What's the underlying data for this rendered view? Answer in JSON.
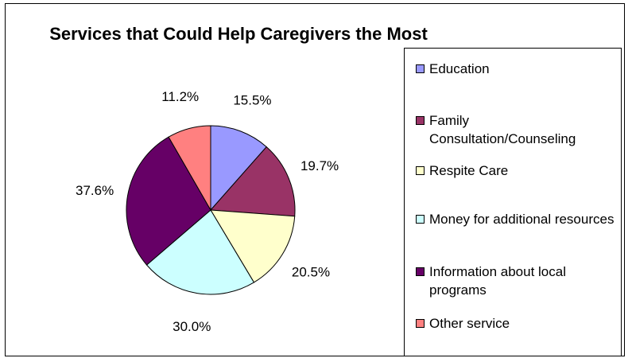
{
  "chart_data": {
    "type": "pie",
    "title": "Services that Could Help Caregivers the Most",
    "slices": [
      {
        "label": "Education",
        "value": 15.5,
        "display": "15.5%",
        "color": "#9999ff"
      },
      {
        "label": "Family Consultation/Counseling",
        "value": 19.7,
        "display": "19.7%",
        "color": "#993366"
      },
      {
        "label": "Respite Care",
        "value": 20.5,
        "display": "20.5%",
        "color": "#ffffcc"
      },
      {
        "label": "Money for additional resources",
        "value": 30.0,
        "display": "30.0%",
        "color": "#ccffff"
      },
      {
        "label": "Information about local programs",
        "value": 37.6,
        "display": "37.6%",
        "color": "#660066"
      },
      {
        "label": "Other service",
        "value": 11.2,
        "display": "11.2%",
        "color": "#ff8080"
      }
    ],
    "legend_position": "right"
  }
}
